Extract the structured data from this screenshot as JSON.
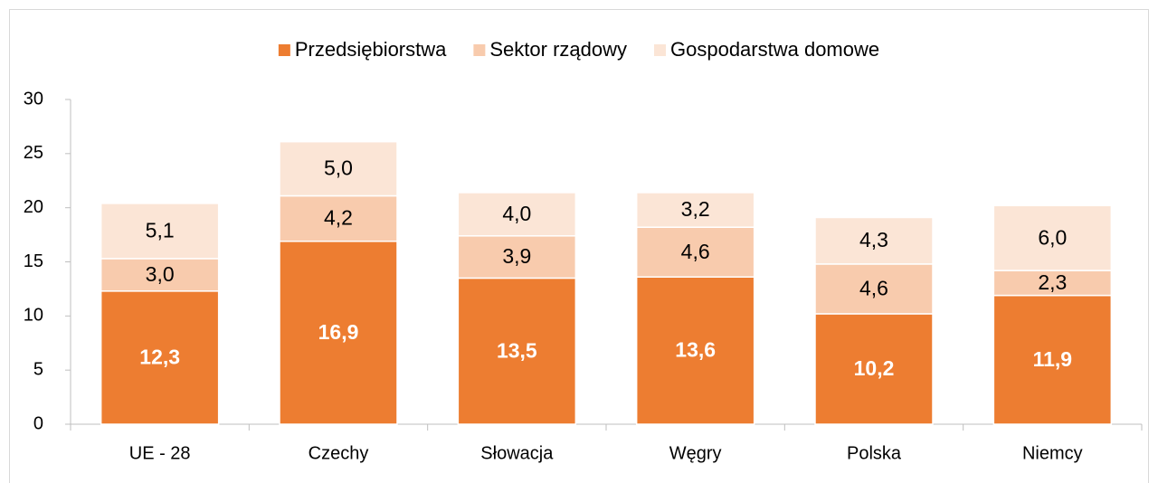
{
  "chart_data": {
    "type": "stacked_bar",
    "categories": [
      "UE - 28",
      "Czechy",
      "Słowacja",
      "Węgry",
      "Polska",
      "Niemcy"
    ],
    "series": [
      {
        "name": "Przedsiębiorstwa",
        "color": "#ed7d31",
        "values": [
          12.3,
          16.9,
          13.5,
          13.6,
          10.2,
          11.9
        ],
        "value_labels": [
          "12,3",
          "16,9",
          "13,5",
          "13,6",
          "10,2",
          "11,9"
        ]
      },
      {
        "name": "Sektor rządowy",
        "color": "#f8cbad",
        "values": [
          3.0,
          4.2,
          3.9,
          4.6,
          4.6,
          2.3
        ],
        "value_labels": [
          "3,0",
          "4,2",
          "3,9",
          "4,6",
          "4,6",
          "2,3"
        ]
      },
      {
        "name": "Gospodarstwa domowe",
        "color": "#fbe5d6",
        "values": [
          5.1,
          5.0,
          4.0,
          3.2,
          4.3,
          6.0
        ],
        "value_labels": [
          "5,1",
          "5,0",
          "4,0",
          "3,2",
          "4,3",
          "6,0"
        ]
      }
    ],
    "ylim": [
      0,
      30
    ],
    "yticks": [
      0,
      5,
      10,
      15,
      20,
      25,
      30
    ],
    "legend": "top",
    "grid": false
  }
}
